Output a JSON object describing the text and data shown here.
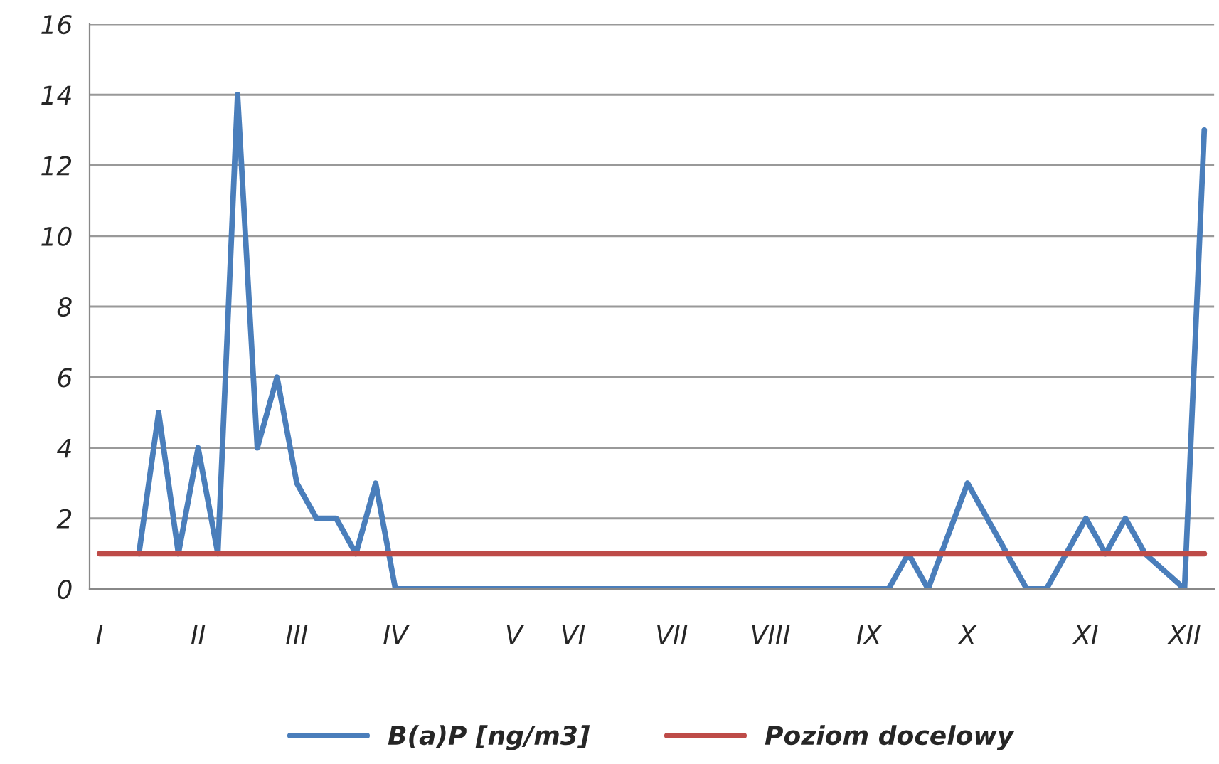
{
  "chart_data": {
    "type": "line",
    "categories": [
      "I",
      null,
      null,
      null,
      null,
      "II",
      null,
      null,
      null,
      null,
      "III",
      null,
      null,
      null,
      null,
      "IV",
      null,
      null,
      null,
      null,
      null,
      "V",
      null,
      null,
      "VI",
      null,
      null,
      null,
      null,
      "VII",
      null,
      null,
      null,
      null,
      "VIII",
      null,
      null,
      null,
      null,
      "IX",
      null,
      null,
      null,
      null,
      "X",
      null,
      null,
      null,
      null,
      null,
      "XI",
      null,
      null,
      null,
      null,
      "XII",
      null
    ],
    "series": [
      {
        "name": "B(a)P [ng/m3]",
        "color": "#4a7ebb",
        "values": [
          null,
          null,
          1,
          5,
          1,
          4,
          1,
          14,
          4,
          6,
          3,
          2,
          2,
          1,
          3,
          0,
          0,
          0,
          0,
          0,
          0,
          0,
          0,
          0,
          0,
          0,
          0,
          0,
          0,
          0,
          0,
          0,
          0,
          0,
          0,
          0,
          0,
          0,
          0,
          0,
          0,
          1,
          0,
          1.5,
          3,
          2,
          1,
          0,
          0,
          1,
          2,
          1,
          2,
          1,
          0.5,
          0,
          13
        ]
      },
      {
        "name": "Poziom docelowy",
        "color": "#be4b48",
        "values": [
          1,
          1,
          1,
          1,
          1,
          1,
          1,
          1,
          1,
          1,
          1,
          1,
          1,
          1,
          1,
          1,
          1,
          1,
          1,
          1,
          1,
          1,
          1,
          1,
          1,
          1,
          1,
          1,
          1,
          1,
          1,
          1,
          1,
          1,
          1,
          1,
          1,
          1,
          1,
          1,
          1,
          1,
          1,
          1,
          1,
          1,
          1,
          1,
          1,
          1,
          1,
          1,
          1,
          1,
          1,
          1,
          1
        ]
      }
    ],
    "ylim": [
      0,
      16
    ],
    "yticks": [
      0,
      2,
      4,
      6,
      8,
      10,
      12,
      14,
      16
    ],
    "grid": "y",
    "legend": "bottom",
    "marker": "none",
    "line_style": "solid"
  }
}
